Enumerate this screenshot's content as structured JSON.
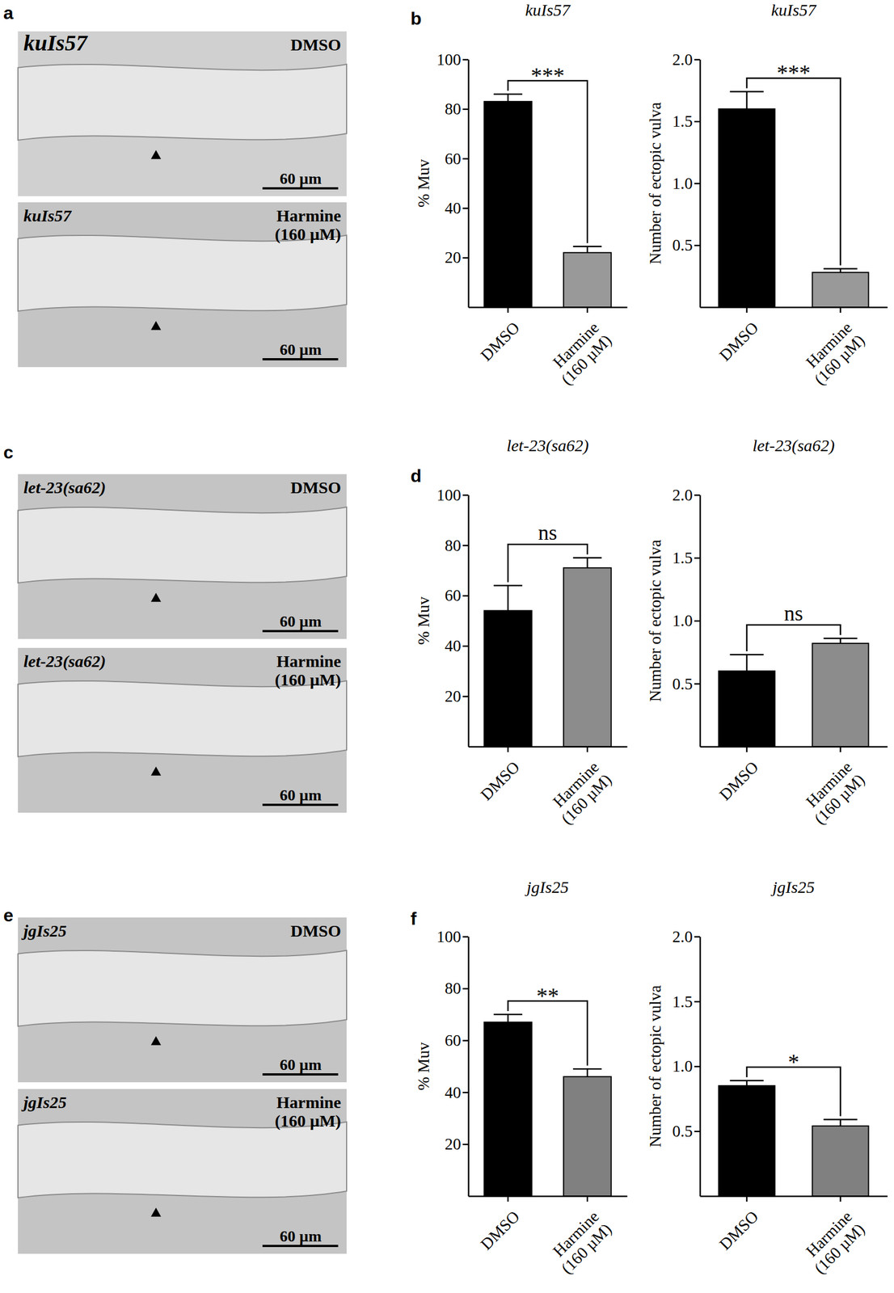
{
  "chart_data": [
    {
      "type": "bar",
      "title": "kuIs57",
      "y_label": "% Muv",
      "categories": [
        "DMSO",
        "Harmine (160 µM)"
      ],
      "values": [
        83,
        22
      ],
      "errors": [
        3,
        2.5
      ],
      "colors": [
        "#000000",
        "#999999"
      ],
      "ylim": [
        0,
        100
      ],
      "yticks": [
        20,
        40,
        60,
        80,
        100
      ],
      "annotation": "***"
    },
    {
      "type": "bar",
      "title": "kuIs57",
      "y_label": "Number of ectopic vulva",
      "categories": [
        "DMSO",
        "Harmine (160 µM)"
      ],
      "values": [
        1.6,
        0.28
      ],
      "errors": [
        0.14,
        0.03
      ],
      "colors": [
        "#000000",
        "#999999"
      ],
      "ylim": [
        0,
        2
      ],
      "yticks": [
        0.5,
        {
          "value": 1,
          "label": "1.0"
        },
        1.5,
        {
          "value": 2,
          "label": "2.0"
        }
      ],
      "annotation": "***"
    },
    {
      "type": "bar",
      "title": "let-23(sa62)",
      "y_label": "% Muv",
      "categories": [
        "DMSO",
        "Harmine (160 µM)"
      ],
      "values": [
        54,
        71
      ],
      "errors": [
        10,
        4
      ],
      "colors": [
        "#000000",
        "#8c8c8c"
      ],
      "ylim": [
        0,
        100
      ],
      "yticks": [
        20,
        40,
        60,
        80,
        100
      ],
      "annotation": "ns"
    },
    {
      "type": "bar",
      "title": "let-23(sa62)",
      "y_label": "Number of ectopic vulva",
      "categories": [
        "DMSO",
        "Harmine (160 µM)"
      ],
      "values": [
        0.6,
        0.82
      ],
      "errors": [
        0.13,
        0.04
      ],
      "colors": [
        "#000000",
        "#8c8c8c"
      ],
      "ylim": [
        0,
        2
      ],
      "yticks": [
        0.5,
        {
          "value": 1,
          "label": "1.0"
        },
        1.5,
        {
          "value": 2,
          "label": "2.0"
        }
      ],
      "annotation": "ns"
    },
    {
      "type": "bar",
      "title": "jgIs25",
      "y_label": "% Muv",
      "categories": [
        "DMSO",
        "Harmine (160 µM)"
      ],
      "values": [
        67,
        46
      ],
      "errors": [
        3,
        3
      ],
      "colors": [
        "#000000",
        "#808080"
      ],
      "ylim": [
        0,
        100
      ],
      "yticks": [
        20,
        40,
        60,
        80,
        100
      ],
      "annotation": "**"
    },
    {
      "type": "bar",
      "title": "jgIs25",
      "y_label": "Number of ectopic vulva",
      "categories": [
        "DMSO",
        "Harmine (160 µM)"
      ],
      "values": [
        0.85,
        0.54
      ],
      "errors": [
        0.04,
        0.05
      ],
      "colors": [
        "#000000",
        "#808080"
      ],
      "ylim": [
        0,
        2
      ],
      "yticks": [
        0.5,
        {
          "value": 1,
          "label": "1.0"
        },
        1.5,
        {
          "value": 2,
          "label": "2.0"
        }
      ],
      "annotation": "*"
    }
  ],
  "panel_labels": [
    "a",
    "b",
    "c",
    "d",
    "e",
    "f"
  ],
  "images": [
    {
      "strain": "kuIs57",
      "treatment": "DMSO",
      "scale_bar": "60 µm"
    },
    {
      "strain": "kuIs57",
      "treatment": "Harmine (160 µM)",
      "scale_bar": "60 µm"
    },
    {
      "strain": "let-23(sa62)",
      "treatment": "DMSO",
      "scale_bar": "60 µm"
    },
    {
      "strain": "let-23(sa62)",
      "treatment": "Harmine (160 µM)",
      "scale_bar": "60 µm"
    },
    {
      "strain": "jgIs25",
      "treatment": "DMSO",
      "scale_bar": "60 µm"
    },
    {
      "strain": "jgIs25",
      "treatment": "Harmine (160 µM)",
      "scale_bar": "60 µm"
    }
  ]
}
